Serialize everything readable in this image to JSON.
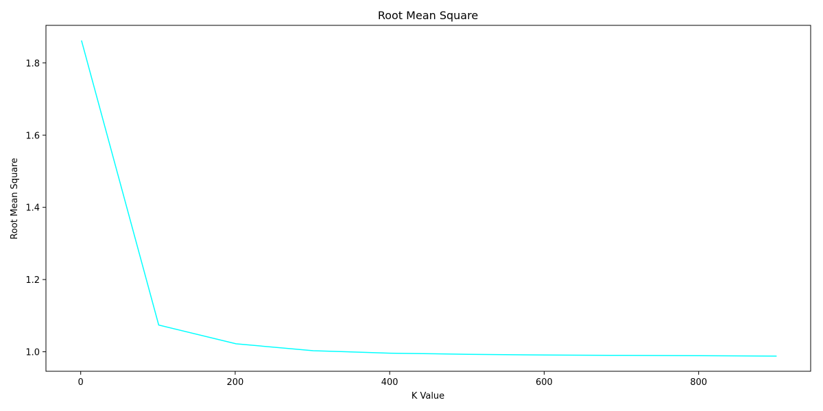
{
  "chart_data": {
    "type": "line",
    "title": "Root Mean Square",
    "xlabel": "K Value",
    "ylabel": "Root Mean Square",
    "xlim": [
      -45,
      945
    ],
    "ylim": [
      0.946,
      1.904
    ],
    "xticks": [
      0,
      200,
      400,
      600,
      800
    ],
    "xtick_labels": [
      "0",
      "200",
      "400",
      "600",
      "800"
    ],
    "yticks": [
      1.0,
      1.2,
      1.4,
      1.6,
      1.8
    ],
    "ytick_labels": [
      "1.0",
      "1.2",
      "1.4",
      "1.6",
      "1.8"
    ],
    "grid": false,
    "legend": "none",
    "series": [
      {
        "color": "#00ffff",
        "x": [
          1,
          101,
          201,
          301,
          401,
          501,
          601,
          701,
          801,
          901
        ],
        "y": [
          1.862,
          1.074,
          1.022,
          1.003,
          0.996,
          0.993,
          0.991,
          0.99,
          0.989,
          0.988
        ]
      }
    ]
  }
}
